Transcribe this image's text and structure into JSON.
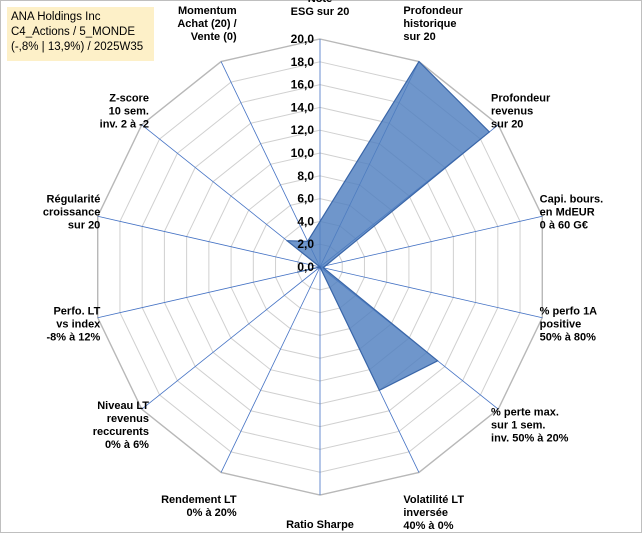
{
  "title_box": {
    "line1": "ANA Holdings Inc",
    "line2": "C4_Actions / 5_MONDE",
    "line3": "(-,8% | 13,9%) / 2025W35"
  },
  "chart_data": {
    "type": "radar",
    "rmax": 20,
    "tick_step": 2,
    "tick_labels": [
      "0,0",
      "2,0",
      "4,0",
      "6,0",
      "8,0",
      "10,0",
      "12,0",
      "14,0",
      "16,0",
      "18,0",
      "20,0"
    ],
    "axes": [
      {
        "label": [
          "Note",
          "ESG sur 20"
        ]
      },
      {
        "label": [
          "Profondeur",
          "historique",
          "sur 20"
        ]
      },
      {
        "label": [
          "Profondeur",
          "revenus",
          "sur 20"
        ]
      },
      {
        "label": [
          "Capi. bours.",
          "en MdEUR",
          "0 à 60 G€"
        ]
      },
      {
        "label": [
          "% perfo 1A",
          "positive",
          "50% à 80%"
        ]
      },
      {
        "label": [
          "% perte max.",
          "sur 1 sem.",
          "inv. 50% à 20%"
        ]
      },
      {
        "label": [
          "Volatilité LT",
          "inversée",
          "40% à 0%"
        ]
      },
      {
        "label": [
          "Ratio Sharpe",
          "0 à 1"
        ]
      },
      {
        "label": [
          "Rendement LT",
          "0% à 20%"
        ]
      },
      {
        "label": [
          "Niveau LT",
          "revenus",
          "reccurents",
          "0% à 6%"
        ]
      },
      {
        "label": [
          "Perfo. LT",
          "vs index",
          "-8% à 12%"
        ]
      },
      {
        "label": [
          "Régularité",
          "croissance",
          "sur 20"
        ]
      },
      {
        "label": [
          "Z-score",
          "10 sem.",
          "inv. 2 à -2"
        ]
      },
      {
        "label": [
          "Momentum",
          "Achat (20) /",
          "Vente (0)"
        ]
      }
    ],
    "series": [
      {
        "values": [
          4.0,
          20.0,
          19.0,
          0.5,
          0.3,
          13.2,
          12.0,
          0.0,
          0.0,
          0.0,
          2.0,
          0.0,
          3.7,
          2.5
        ]
      }
    ],
    "colors": {
      "fill": "#4f7fbf",
      "stroke": "#3a66a8",
      "grid": "#d0d0d0",
      "spoke": "#4472c4"
    }
  }
}
